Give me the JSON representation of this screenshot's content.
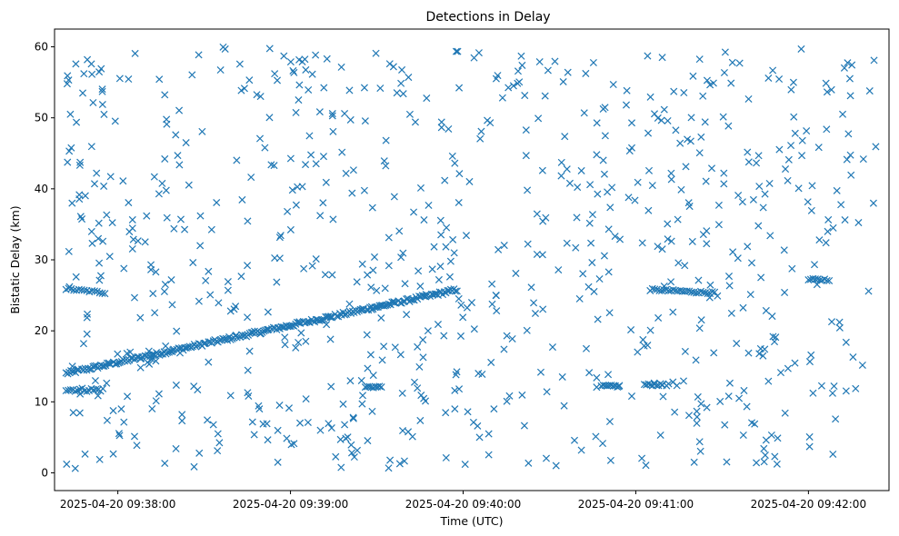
{
  "chart_data": {
    "type": "scatter",
    "title": "Detections in Delay",
    "xlabel": "Time (UTC)",
    "ylabel": "Bistatic Delay (km)",
    "x_is_time": true,
    "xlim": [
      "2025-04-20 09:37:38",
      "2025-04-20 09:42:28"
    ],
    "ylim": [
      -2.5,
      62.5
    ],
    "xticks": [
      "2025-04-20 09:38:00",
      "2025-04-20 09:39:00",
      "2025-04-20 09:40:00",
      "2025-04-20 09:41:00",
      "2025-04-20 09:42:00"
    ],
    "yticks": [
      0,
      10,
      20,
      30,
      40,
      50,
      60
    ],
    "grid": false,
    "marker": "x",
    "color": "#1f77b4",
    "series": [
      {
        "name": "",
        "start_time": "2025-04-20 09:37:42",
        "end_time": "2025-04-20 09:42:24",
        "x": [],
        "y": []
      }
    ]
  }
}
